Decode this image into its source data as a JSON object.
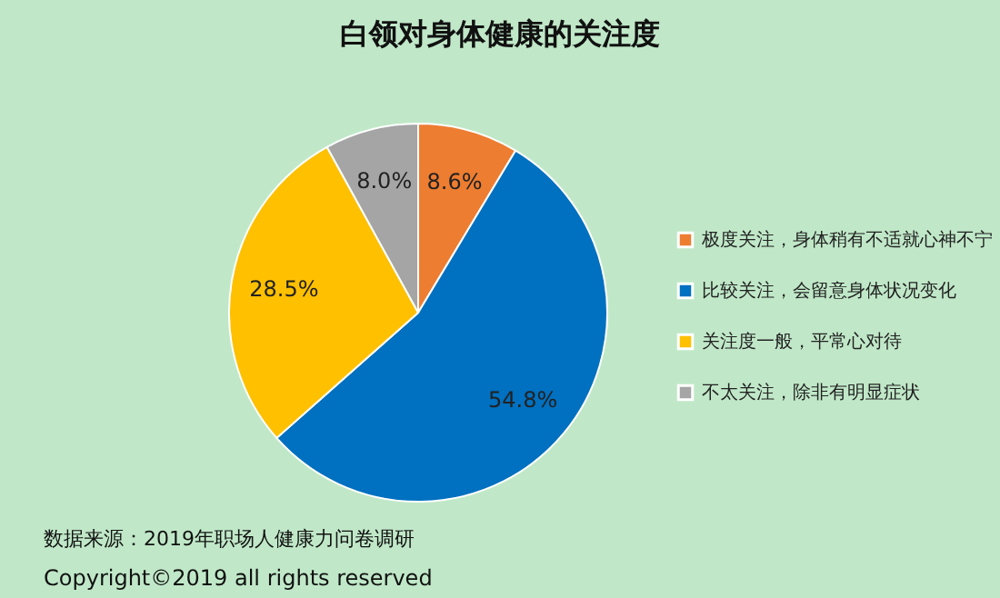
{
  "chart_data": {
    "type": "pie",
    "title": "白领对身体健康的关注度",
    "categories": [
      "极度关注，身体稍有不适就心神不宁",
      "比较关注，会留意身体状况变化",
      "关注度一般，平常心对待",
      "不太关注，除非有明显症状"
    ],
    "values": [
      8.6,
      54.8,
      28.5,
      8.0
    ],
    "colors": [
      "#ed7d31",
      "#0070c0",
      "#ffc000",
      "#a5a5a5"
    ],
    "value_labels": [
      "8.6%",
      "54.8%",
      "28.5%",
      "8.0%"
    ],
    "legend": "right",
    "annotations": [
      "数据来源：2019年职场人健康力问卷调研",
      "Copyright©2019 all rights reserved"
    ]
  }
}
